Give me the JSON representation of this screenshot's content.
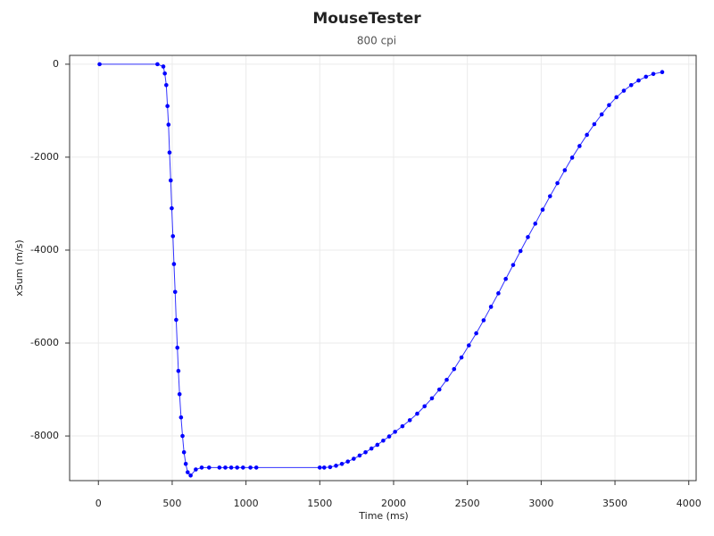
{
  "chart_data": {
    "type": "line",
    "title": "MouseTester",
    "subtitle": "800 cpi",
    "x_label": "Time (ms)",
    "y_label": "xSum (m/s)",
    "color": "#0000ff",
    "grid": true,
    "xlim": [
      -195,
      4050
    ],
    "ylim": [
      -8960,
      190
    ],
    "xticks": [
      0,
      500,
      1000,
      1500,
      2000,
      2500,
      3000,
      3500,
      4000
    ],
    "yticks": [
      0,
      -2000,
      -4000,
      -6000,
      -8000
    ],
    "x": [
      8,
      400,
      440,
      450,
      460,
      468,
      475,
      482,
      490,
      497,
      505,
      512,
      520,
      527,
      535,
      542,
      550,
      560,
      570,
      580,
      592,
      605,
      625,
      660,
      700,
      750,
      820,
      860,
      900,
      940,
      980,
      1030,
      1070,
      1500,
      1530,
      1570,
      1610,
      1650,
      1690,
      1730,
      1770,
      1810,
      1850,
      1890,
      1930,
      1970,
      2010,
      2060,
      2110,
      2160,
      2210,
      2260,
      2310,
      2360,
      2410,
      2460,
      2510,
      2560,
      2610,
      2660,
      2710,
      2760,
      2810,
      2860,
      2910,
      2960,
      3010,
      3060,
      3110,
      3160,
      3210,
      3260,
      3310,
      3360,
      3410,
      3460,
      3510,
      3560,
      3610,
      3660,
      3710,
      3760,
      3820
    ],
    "values": [
      0,
      0,
      -50,
      -200,
      -450,
      -900,
      -1300,
      -1900,
      -2500,
      -3100,
      -3700,
      -4300,
      -4900,
      -5500,
      -6100,
      -6600,
      -7100,
      -7600,
      -8000,
      -8350,
      -8600,
      -8780,
      -8850,
      -8720,
      -8680,
      -8680,
      -8680,
      -8680,
      -8680,
      -8680,
      -8680,
      -8680,
      -8680,
      -8680,
      -8680,
      -8670,
      -8640,
      -8600,
      -8550,
      -8490,
      -8420,
      -8350,
      -8270,
      -8190,
      -8100,
      -8010,
      -7910,
      -7790,
      -7660,
      -7520,
      -7360,
      -7190,
      -7000,
      -6790,
      -6560,
      -6310,
      -6050,
      -5790,
      -5510,
      -5220,
      -4930,
      -4620,
      -4320,
      -4020,
      -3720,
      -3430,
      -3130,
      -2840,
      -2560,
      -2280,
      -2010,
      -1760,
      -1520,
      -1290,
      -1080,
      -880,
      -710,
      -570,
      -450,
      -350,
      -270,
      -210,
      -170
    ]
  }
}
